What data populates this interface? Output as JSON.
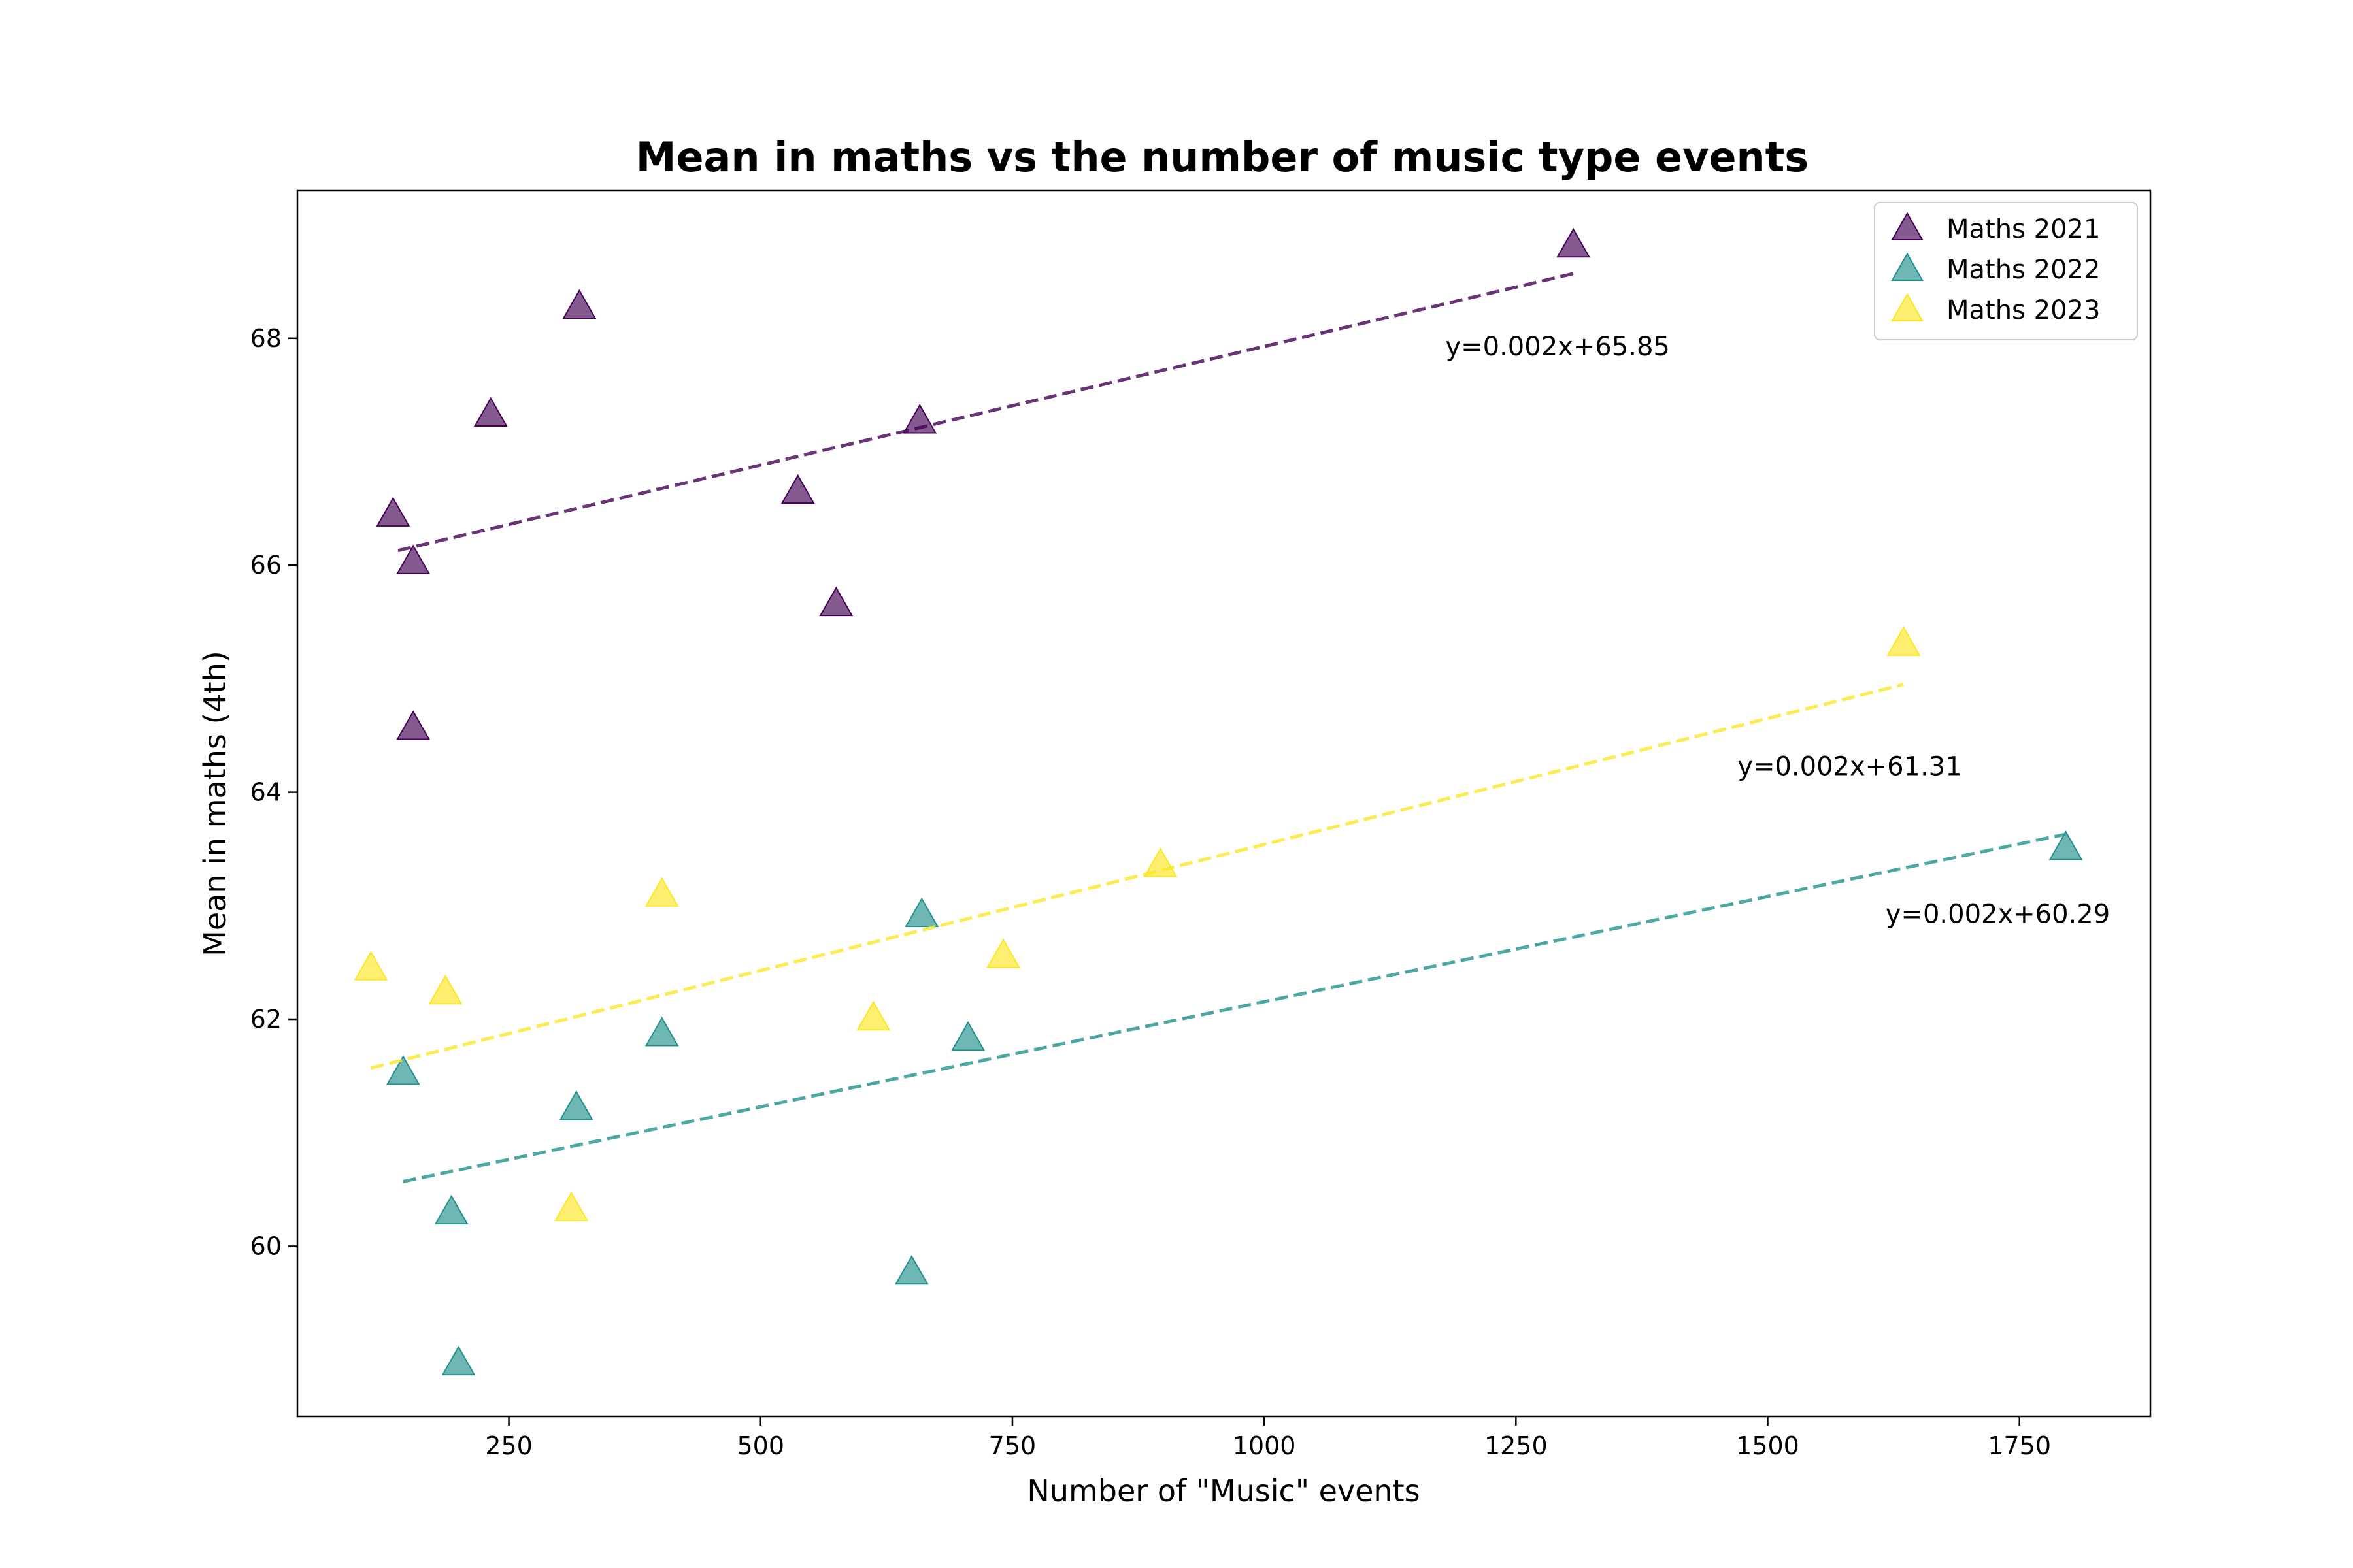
{
  "chart_data": {
    "type": "scatter",
    "title": "Mean in maths vs the number of music type events",
    "xlabel": "Number of \"Music\" events",
    "ylabel": "Mean in maths (4th)",
    "xlim": [
      40,
      1880
    ],
    "ylim": [
      58.5,
      69.3
    ],
    "xticks": [
      250,
      500,
      750,
      1000,
      1250,
      1500,
      1750
    ],
    "yticks": [
      60,
      62,
      64,
      66,
      68
    ],
    "legend_position": "top-right",
    "grid": false,
    "series": [
      {
        "name": "Maths 2021",
        "color": "#440154",
        "points": [
          {
            "x": 135,
            "y": 66.45
          },
          {
            "x": 155,
            "y": 66.03
          },
          {
            "x": 155,
            "y": 64.57
          },
          {
            "x": 232,
            "y": 67.33
          },
          {
            "x": 320,
            "y": 68.28
          },
          {
            "x": 537,
            "y": 66.65
          },
          {
            "x": 575,
            "y": 65.66
          },
          {
            "x": 658,
            "y": 67.27
          },
          {
            "x": 1307,
            "y": 68.82
          }
        ],
        "fit": {
          "x": [
            140,
            1307
          ],
          "y": [
            66.13,
            68.57
          ],
          "label": "y=0.002x+65.85",
          "label_x": 1180,
          "label_y": 67.85
        }
      },
      {
        "name": "Maths 2022",
        "color": "#21918c",
        "points": [
          {
            "x": 145,
            "y": 61.53
          },
          {
            "x": 193,
            "y": 60.3
          },
          {
            "x": 200,
            "y": 58.97
          },
          {
            "x": 317,
            "y": 61.22
          },
          {
            "x": 402,
            "y": 61.87
          },
          {
            "x": 650,
            "y": 59.77
          },
          {
            "x": 660,
            "y": 62.92
          },
          {
            "x": 706,
            "y": 61.83
          },
          {
            "x": 1796,
            "y": 63.51
          }
        ],
        "fit": {
          "x": [
            145,
            1796
          ],
          "y": [
            60.57,
            63.63
          ],
          "label": "y=0.002x+60.29",
          "label_x": 1617,
          "label_y": 62.85
        }
      },
      {
        "name": "Maths 2023",
        "color": "#fde725",
        "points": [
          {
            "x": 113,
            "y": 62.45
          },
          {
            "x": 187,
            "y": 62.24
          },
          {
            "x": 312,
            "y": 60.33
          },
          {
            "x": 402,
            "y": 63.1
          },
          {
            "x": 612,
            "y": 62.01
          },
          {
            "x": 741,
            "y": 62.56
          },
          {
            "x": 897,
            "y": 63.36
          },
          {
            "x": 1635,
            "y": 65.31
          }
        ],
        "fit": {
          "x": [
            113,
            1635
          ],
          "y": [
            61.57,
            64.95
          ],
          "label": "y=0.002x+61.31",
          "label_x": 1470,
          "label_y": 64.15
        }
      }
    ]
  }
}
